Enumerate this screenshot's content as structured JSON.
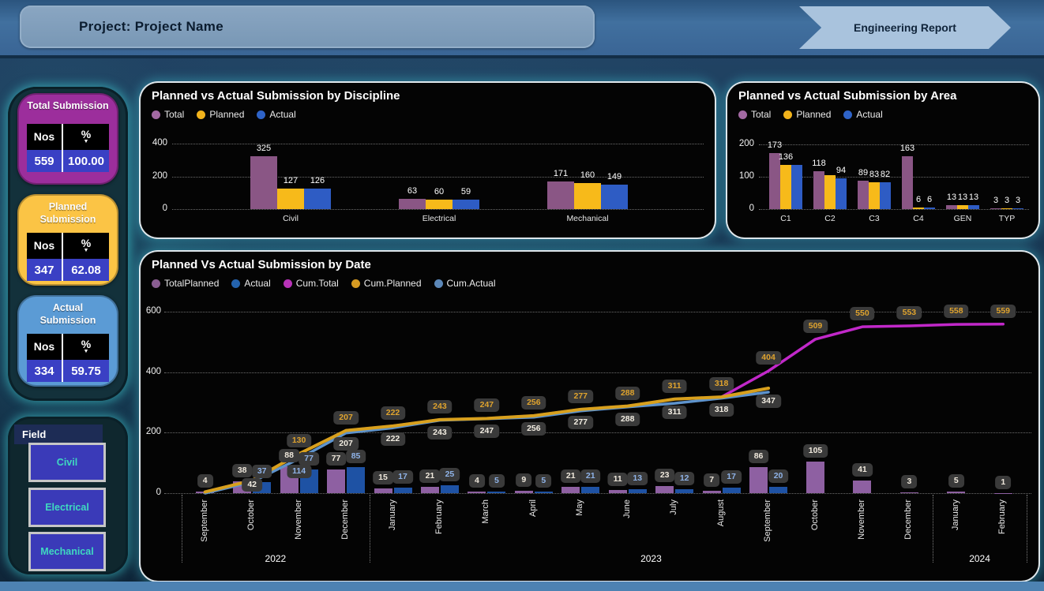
{
  "header": {
    "project_label": "Project: Project Name",
    "report_label": "Engineering Report"
  },
  "kpi_cards": [
    {
      "title": "Total Submission",
      "col_nos": "Nos",
      "col_pct": "%",
      "nos": "559",
      "pct": "100.00",
      "card_color": "#9c2e9c"
    },
    {
      "title": "Planned Submission",
      "col_nos": "Nos",
      "col_pct": "%",
      "nos": "347",
      "pct": "62.08",
      "card_color": "#fbc445"
    },
    {
      "title": "Actual Submission",
      "col_nos": "Nos",
      "col_pct": "%",
      "nos": "334",
      "pct": "59.75",
      "card_color": "#5b9bd5"
    }
  ],
  "field": {
    "title": "Field",
    "buttons": [
      "Civil",
      "Electrical",
      "Mechanical"
    ]
  },
  "chart_data": [
    {
      "id": "discipline",
      "type": "bar",
      "title": "Planned vs Actual Submission by Discipline",
      "legend": [
        {
          "label": "Total",
          "color": "#a269a2"
        },
        {
          "label": "Planned",
          "color": "#f2b31b"
        },
        {
          "label": "Actual",
          "color": "#2e63c8"
        }
      ],
      "categories": [
        "Civil",
        "Electrical",
        "Mechanical"
      ],
      "series": [
        {
          "name": "Total",
          "color": "#8a5685",
          "values": [
            325,
            63,
            171
          ],
          "labels": [
            "325",
            "63",
            "171"
          ]
        },
        {
          "name": "Planned",
          "color": "#f7ba1a",
          "values": [
            127,
            60,
            160
          ],
          "labels": [
            "127",
            "60",
            "160"
          ]
        },
        {
          "name": "Actual",
          "color": "#2e5cc4",
          "values": [
            126,
            59,
            149
          ],
          "labels": [
            "126",
            "59",
            "149"
          ]
        }
      ],
      "yticks": [
        0,
        200,
        400
      ],
      "ylim": [
        0,
        400
      ],
      "grid": true,
      "legend_position": "top"
    },
    {
      "id": "area",
      "type": "bar",
      "title": "Planned vs Actual Submission by Area",
      "legend": [
        {
          "label": "Total",
          "color": "#a269a2"
        },
        {
          "label": "Planned",
          "color": "#f2b31b"
        },
        {
          "label": "Actual",
          "color": "#2e63c8"
        }
      ],
      "categories": [
        "C1",
        "C2",
        "C3",
        "C4",
        "GEN",
        "TYP"
      ],
      "series": [
        {
          "name": "Total",
          "color": "#8a5685",
          "values": [
            173,
            118,
            89,
            163,
            13,
            3
          ],
          "labels": [
            "173",
            "118",
            "89",
            "163",
            "13",
            "3"
          ]
        },
        {
          "name": "Planned",
          "color": "#f7ba1a",
          "values": [
            136,
            106,
            83,
            6,
            13,
            3
          ],
          "labels": [
            "136",
            null,
            "83",
            "6",
            "13",
            "3"
          ]
        },
        {
          "name": "Actual",
          "color": "#2e5cc4",
          "values": [
            136,
            94,
            82,
            6,
            13,
            3
          ],
          "labels": [
            null,
            "94",
            "82",
            "6",
            "13",
            "3"
          ]
        }
      ],
      "yticks": [
        0,
        100,
        200
      ],
      "ylim": [
        0,
        200
      ],
      "grid": true,
      "legend_position": "top"
    },
    {
      "id": "date",
      "type": "combo",
      "title": "Planned Vs Actual Submission by Date",
      "legend": [
        {
          "label": "TotalPlanned",
          "color": "#8a5e92"
        },
        {
          "label": "Actual",
          "color": "#2463ae"
        },
        {
          "label": "Cum.Total",
          "color": "#b833b8"
        },
        {
          "label": "Cum.Planned",
          "color": "#d79b22"
        },
        {
          "label": "Cum.Actual",
          "color": "#5c88b8"
        }
      ],
      "months": [
        "September",
        "October",
        "November",
        "December",
        "January",
        "February",
        "March",
        "April",
        "May",
        "June",
        "July",
        "August",
        "September",
        "October",
        "November",
        "December",
        "January",
        "February"
      ],
      "year_groups": [
        {
          "label": "2022",
          "start": 0,
          "end": 3
        },
        {
          "label": "2023",
          "start": 4,
          "end": 15
        },
        {
          "label": "2024",
          "start": 16,
          "end": 17
        }
      ],
      "bars": [
        {
          "name": "TotalPlanned",
          "color": "#8e60a2",
          "label_color": "#efe8dc",
          "values": [
            4,
            38,
            88,
            77,
            15,
            21,
            4,
            9,
            21,
            11,
            23,
            7,
            86,
            105,
            41,
            3,
            5,
            1
          ],
          "labels": [
            "4",
            "38",
            "88",
            "77",
            "15",
            "21",
            "4",
            "9",
            "21",
            "11",
            "23",
            "7",
            "86",
            "105",
            "41",
            "3",
            "5",
            "1"
          ]
        },
        {
          "name": "Actual",
          "color": "#1e52a4",
          "label_color": "#8fb3e8",
          "values": [
            null,
            37,
            77,
            85,
            17,
            25,
            5,
            5,
            21,
            13,
            12,
            17,
            20,
            null,
            null,
            null,
            null,
            null
          ],
          "labels": [
            null,
            "37",
            "77",
            "85",
            "17",
            "25",
            "5",
            "5",
            "21",
            "13",
            "12",
            "17",
            "20",
            null,
            null,
            null,
            null,
            null
          ]
        }
      ],
      "lines": [
        {
          "name": "Cum.Total",
          "color": "#c128c9",
          "label_color": "#dfa32e",
          "label_pos": "above",
          "values": [
            4,
            42,
            130,
            207,
            222,
            243,
            247,
            256,
            277,
            288,
            311,
            318,
            404,
            509,
            550,
            553,
            558,
            559
          ],
          "labels": [
            null,
            null,
            "130",
            "207",
            "222",
            "243",
            "247",
            "256",
            "277",
            "288",
            "311",
            "318",
            "404",
            "509",
            "550",
            "553",
            "558",
            "559"
          ]
        },
        {
          "name": "Cum.Actual",
          "color": "#5e93cc",
          "label_color": "#8fb3e8",
          "label_pos": "below",
          "values": [
            0,
            37,
            114,
            199,
            216,
            241,
            246,
            251,
            272,
            285,
            297,
            314,
            334
          ],
          "labels": [
            null,
            null,
            "114",
            null,
            null,
            null,
            null,
            null,
            null,
            null,
            null,
            null,
            null
          ]
        },
        {
          "name": "Cum.Planned",
          "color": "#d8a01d",
          "label_color": "#f2ede2",
          "label_pos": "below",
          "values": [
            4,
            42,
            130,
            207,
            222,
            243,
            247,
            256,
            277,
            288,
            311,
            318,
            347
          ],
          "labels": [
            null,
            "42",
            null,
            "207",
            "222",
            "243",
            "247",
            "256",
            "277",
            "288",
            "311",
            "318",
            "347"
          ]
        }
      ],
      "yticks": [
        0,
        200,
        400,
        600
      ],
      "ylim": [
        0,
        600
      ],
      "grid": true,
      "legend_position": "top"
    }
  ]
}
